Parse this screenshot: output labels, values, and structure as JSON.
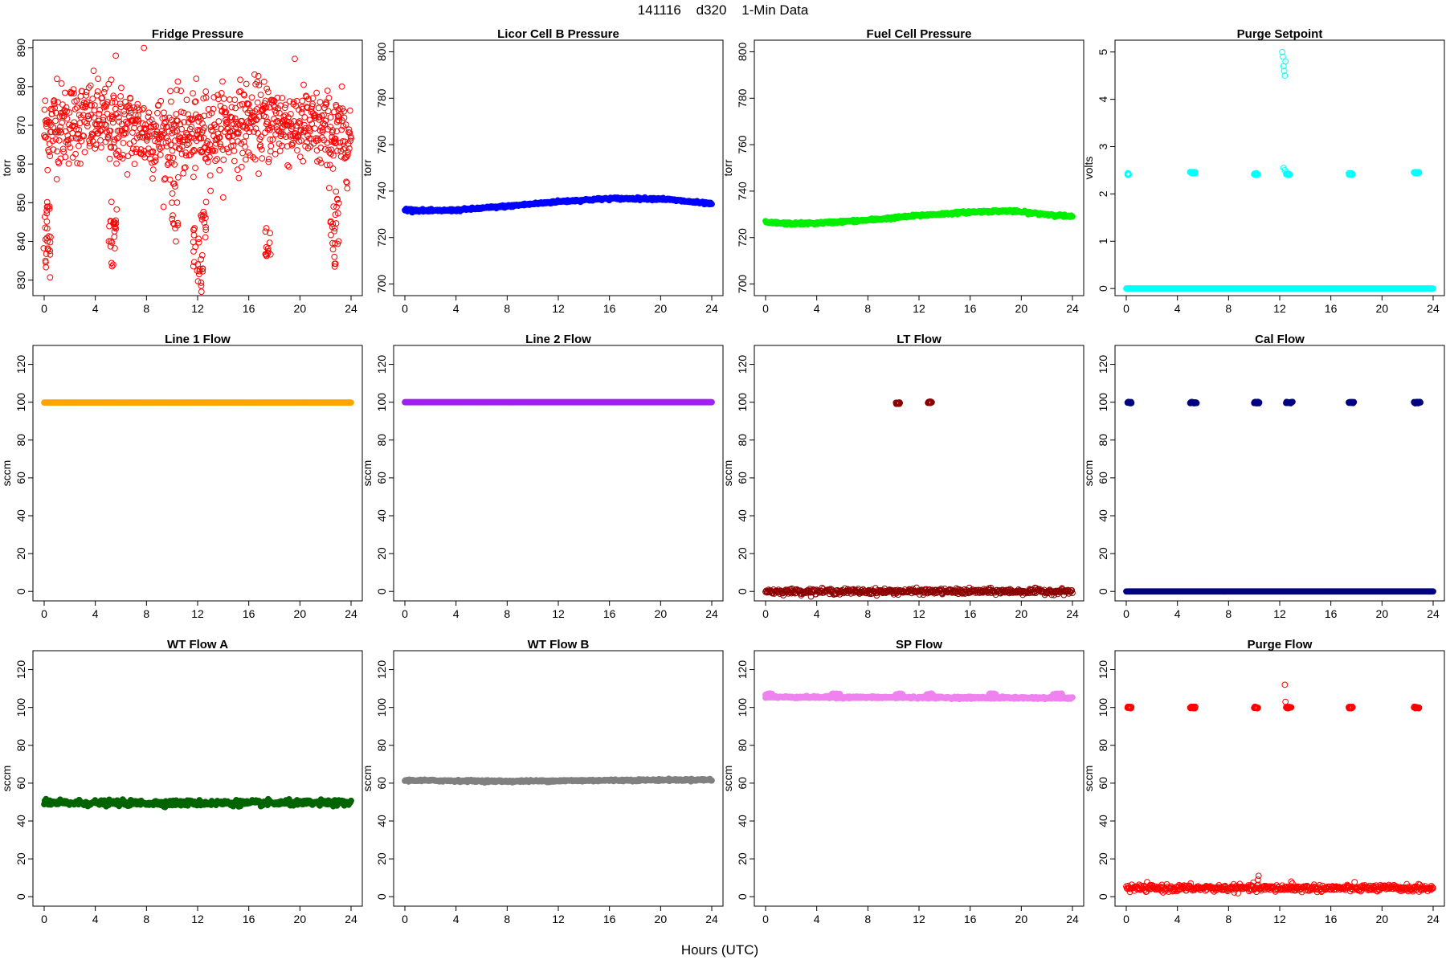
{
  "figure": {
    "title_id": "141116",
    "title_site": "d320",
    "title_desc": "1-Min Data",
    "xlabel": "Hours (UTC)"
  },
  "chart_data": [
    {
      "id": "fridge",
      "type": "scatter",
      "title": "Fridge Pressure",
      "ylabel": "torr",
      "color": "#ff0000",
      "marker": "open",
      "xlim": [
        0,
        24
      ],
      "ylim": [
        826,
        892
      ],
      "yticks": [
        830,
        840,
        850,
        860,
        870,
        880,
        890
      ],
      "xticks": [
        0,
        4,
        8,
        12,
        16,
        20,
        24
      ],
      "pattern": "noisy",
      "baseline": 869,
      "noise": 7,
      "dips": [
        [
          0.2,
          844
        ],
        [
          0.3,
          837
        ],
        [
          5.3,
          840
        ],
        [
          5.5,
          845
        ],
        [
          10.2,
          848
        ],
        [
          11.9,
          838
        ],
        [
          12.2,
          830
        ],
        [
          12.5,
          845
        ],
        [
          17.5,
          842
        ],
        [
          22.6,
          840
        ],
        [
          22.8,
          846
        ]
      ],
      "points": [
        [
          0.1,
          835
        ],
        [
          0.2,
          848
        ],
        [
          0.25,
          840
        ],
        [
          1,
          882
        ],
        [
          5.4,
          834
        ],
        [
          5.6,
          888
        ],
        [
          7.8,
          890
        ],
        [
          9.4,
          856
        ],
        [
          10.3,
          840
        ],
        [
          12.3,
          827
        ],
        [
          12.4,
          833
        ],
        [
          17.5,
          837
        ],
        [
          22.7,
          836
        ]
      ]
    },
    {
      "id": "licor",
      "type": "scatter",
      "title": "Licor Cell B Pressure",
      "ylabel": "torr",
      "color": "#0000ff",
      "marker": "filled",
      "xlim": [
        0,
        24
      ],
      "ylim": [
        695,
        805
      ],
      "yticks": [
        700,
        720,
        740,
        760,
        780,
        800
      ],
      "xticks": [
        0,
        4,
        8,
        12,
        16,
        20,
        24
      ],
      "pattern": "curve",
      "curve": [
        [
          0,
          732
        ],
        [
          2,
          731.5
        ],
        [
          4,
          731.8
        ],
        [
          8,
          733.5
        ],
        [
          12,
          735.5
        ],
        [
          16,
          736.8
        ],
        [
          20,
          736.7
        ],
        [
          24,
          734.5
        ]
      ]
    },
    {
      "id": "fuel",
      "type": "scatter",
      "title": "Fuel Cell Pressure",
      "ylabel": "torr",
      "color": "#00ee00",
      "marker": "filled",
      "xlim": [
        0,
        24
      ],
      "ylim": [
        695,
        805
      ],
      "yticks": [
        700,
        720,
        740,
        760,
        780,
        800
      ],
      "xticks": [
        0,
        4,
        8,
        12,
        16,
        20,
        24
      ],
      "pattern": "curve",
      "curve": [
        [
          0,
          726.5
        ],
        [
          2,
          726
        ],
        [
          4,
          726.2
        ],
        [
          8,
          727.5
        ],
        [
          12,
          729.5
        ],
        [
          16,
          731
        ],
        [
          19,
          731.5
        ],
        [
          24,
          729
        ]
      ]
    },
    {
      "id": "purge_sp",
      "type": "scatter",
      "title": "Purge Setpoint",
      "ylabel": "volts",
      "color": "#00ffff",
      "marker": "open",
      "xlim": [
        0,
        24
      ],
      "ylim": [
        -0.15,
        5.25
      ],
      "yticks": [
        0,
        1,
        2,
        3,
        4,
        5
      ],
      "xticks": [
        0,
        4,
        8,
        12,
        16,
        20,
        24
      ],
      "pattern": "constant",
      "baseline": 0,
      "clusters": [
        [
          0.1,
          0.2,
          2.42
        ],
        [
          5.0,
          5.4,
          2.45
        ],
        [
          10.0,
          10.3,
          2.42
        ],
        [
          12.5,
          12.8,
          2.42
        ],
        [
          17.4,
          17.7,
          2.42
        ],
        [
          22.5,
          22.9,
          2.45
        ]
      ],
      "points": [
        [
          12.2,
          5.0
        ],
        [
          12.25,
          4.9
        ],
        [
          12.3,
          4.7
        ],
        [
          12.35,
          4.6
        ],
        [
          12.4,
          4.5
        ],
        [
          12.45,
          4.8
        ],
        [
          12.3,
          2.55
        ],
        [
          12.4,
          2.5
        ]
      ]
    },
    {
      "id": "line1",
      "type": "scatter",
      "title": "Line 1 Flow",
      "ylabel": "sccm",
      "color": "#ffa500",
      "marker": "filled",
      "xlim": [
        0,
        24
      ],
      "ylim": [
        -5,
        130
      ],
      "yticks": [
        0,
        20,
        40,
        60,
        80,
        100,
        120
      ],
      "xticks": [
        0,
        4,
        8,
        12,
        16,
        20,
        24
      ],
      "pattern": "constant",
      "baseline": 99.8
    },
    {
      "id": "line2",
      "type": "scatter",
      "title": "Line 2 Flow",
      "ylabel": "sccm",
      "color": "#a020f0",
      "marker": "filled",
      "xlim": [
        0,
        24
      ],
      "ylim": [
        -5,
        130
      ],
      "yticks": [
        0,
        20,
        40,
        60,
        80,
        100,
        120
      ],
      "xticks": [
        0,
        4,
        8,
        12,
        16,
        20,
        24
      ],
      "pattern": "constant",
      "baseline": 100
    },
    {
      "id": "lt",
      "type": "scatter",
      "title": "LT Flow",
      "ylabel": "sccm",
      "color": "#8b0000",
      "marker": "open",
      "xlim": [
        0,
        24
      ],
      "ylim": [
        -5,
        130
      ],
      "yticks": [
        0,
        20,
        40,
        60,
        80,
        100,
        120
      ],
      "xticks": [
        0,
        4,
        8,
        12,
        16,
        20,
        24
      ],
      "pattern": "band",
      "baseline": 0,
      "noise": 1.2,
      "clusters": [
        [
          10.2,
          10.5,
          99.5
        ],
        [
          12.7,
          13.0,
          100
        ]
      ]
    },
    {
      "id": "cal",
      "type": "scatter",
      "title": "Cal Flow",
      "ylabel": "sccm",
      "color": "#000080",
      "marker": "filled",
      "xlim": [
        0,
        24
      ],
      "ylim": [
        -5,
        130
      ],
      "yticks": [
        0,
        20,
        40,
        60,
        80,
        100,
        120
      ],
      "xticks": [
        0,
        4,
        8,
        12,
        16,
        20,
        24
      ],
      "pattern": "constant",
      "baseline": 0,
      "clusters": [
        [
          0.1,
          0.4,
          99.8
        ],
        [
          5.0,
          5.5,
          99.8
        ],
        [
          10.0,
          10.4,
          99.8
        ],
        [
          12.5,
          13.0,
          99.8
        ],
        [
          17.4,
          17.8,
          99.8
        ],
        [
          22.5,
          23.0,
          99.8
        ]
      ]
    },
    {
      "id": "wta",
      "type": "scatter",
      "title": "WT Flow A",
      "ylabel": "sccm",
      "color": "#006400",
      "marker": "filled",
      "xlim": [
        0,
        24
      ],
      "ylim": [
        -5,
        130
      ],
      "yticks": [
        0,
        20,
        40,
        60,
        80,
        100,
        120
      ],
      "xticks": [
        0,
        4,
        8,
        12,
        16,
        20,
        24
      ],
      "pattern": "band",
      "baseline": 49.5,
      "noise": 1.2
    },
    {
      "id": "wtb",
      "type": "scatter",
      "title": "WT Flow B",
      "ylabel": "sccm",
      "color": "#808080",
      "marker": "filled",
      "xlim": [
        0,
        24
      ],
      "ylim": [
        -5,
        130
      ],
      "yticks": [
        0,
        20,
        40,
        60,
        80,
        100,
        120
      ],
      "xticks": [
        0,
        4,
        8,
        12,
        16,
        20,
        24
      ],
      "pattern": "curve",
      "curve": [
        [
          0,
          61.5
        ],
        [
          8,
          61
        ],
        [
          16,
          61.5
        ],
        [
          24,
          61.8
        ]
      ]
    },
    {
      "id": "sp",
      "type": "scatter",
      "title": "SP Flow",
      "ylabel": "sccm",
      "color": "#ee82ee",
      "marker": "filled",
      "xlim": [
        0,
        24
      ],
      "ylim": [
        -5,
        130
      ],
      "yticks": [
        0,
        20,
        40,
        60,
        80,
        100,
        120
      ],
      "xticks": [
        0,
        4,
        8,
        12,
        16,
        20,
        24
      ],
      "pattern": "curve",
      "curve": [
        [
          0,
          105.5
        ],
        [
          24,
          105
        ]
      ],
      "clusters": [
        [
          0.0,
          0.5,
          107
        ],
        [
          5.2,
          5.8,
          107
        ],
        [
          10.2,
          10.7,
          107
        ],
        [
          12.6,
          13.1,
          107
        ],
        [
          17.5,
          18.0,
          107
        ],
        [
          22.5,
          23.2,
          107
        ]
      ]
    },
    {
      "id": "purge_flow",
      "type": "scatter",
      "title": "Purge Flow",
      "ylabel": "sccm",
      "color": "#ff0000",
      "marker": "open",
      "xlim": [
        0,
        24
      ],
      "ylim": [
        -5,
        130
      ],
      "yticks": [
        0,
        20,
        40,
        60,
        80,
        100,
        120
      ],
      "xticks": [
        0,
        4,
        8,
        12,
        16,
        20,
        24
      ],
      "pattern": "band",
      "baseline": 4.5,
      "noise": 1.5,
      "clusters": [
        [
          0.1,
          0.4,
          100
        ],
        [
          5.0,
          5.4,
          100
        ],
        [
          10.0,
          10.3,
          100
        ],
        [
          12.5,
          12.9,
          100
        ],
        [
          17.4,
          17.7,
          100
        ],
        [
          22.5,
          22.9,
          100
        ]
      ],
      "points": [
        [
          12.4,
          112
        ],
        [
          12.45,
          103
        ],
        [
          10.3,
          9
        ],
        [
          10.35,
          11
        ],
        [
          12.9,
          8
        ],
        [
          13.0,
          7
        ]
      ]
    }
  ]
}
